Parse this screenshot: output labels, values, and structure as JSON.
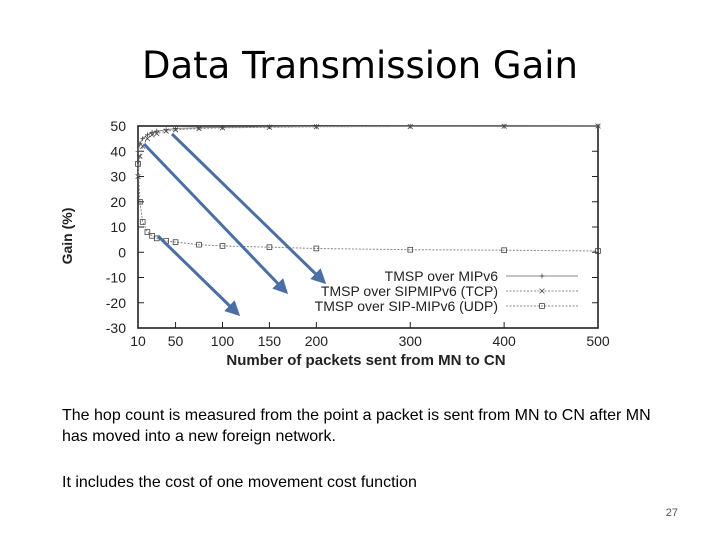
{
  "slide": {
    "title": "Data Transmission Gain",
    "caption_1": "The hop count is measured from the point a packet is sent from MN to CN after MN has moved into a new foreign network.",
    "caption_2": "It includes the cost of one movement cost function",
    "page_number": "27"
  },
  "chart_data": {
    "type": "line",
    "title": "",
    "xlabel": "Number of packets sent from MN to CN",
    "ylabel": "Gain (%)",
    "xlim": [
      10,
      500
    ],
    "ylim": [
      -30,
      50
    ],
    "x_ticks": [
      10,
      50,
      100,
      150,
      200,
      300,
      400,
      500
    ],
    "y_ticks": [
      50,
      40,
      30,
      20,
      10,
      0,
      -10,
      -20,
      -30
    ],
    "grid": false,
    "legend_position": "bottom-right",
    "series": [
      {
        "name": "TMSP over MIPv6",
        "marker": "plus",
        "x": [
          10,
          12,
          15,
          20,
          25,
          30,
          40,
          50,
          75,
          100,
          150,
          200,
          300,
          400,
          500
        ],
        "y": [
          40,
          43,
          45,
          46.5,
          47.5,
          48,
          48.5,
          49,
          49.3,
          49.5,
          49.7,
          49.8,
          49.9,
          49.9,
          50
        ]
      },
      {
        "name": "TMSP over SIPMIPv6 (TCP)",
        "marker": "cross",
        "x": [
          10,
          12,
          15,
          20,
          25,
          30,
          40,
          50,
          75,
          100,
          150,
          200,
          300,
          400,
          500
        ],
        "y": [
          30,
          38,
          42,
          45,
          46.5,
          47,
          48,
          48.5,
          49,
          49.3,
          49.5,
          49.7,
          49.8,
          49.9,
          50
        ]
      },
      {
        "name": "TMSP over SIP-MIPv6 (UDP)",
        "marker": "square",
        "x": [
          10,
          12,
          15,
          20,
          25,
          30,
          40,
          50,
          75,
          100,
          150,
          200,
          300,
          400,
          500
        ],
        "y": [
          35,
          20,
          12,
          8,
          6.5,
          5.5,
          4.5,
          4,
          3,
          2.5,
          2,
          1.5,
          1,
          0.8,
          0.5
        ]
      }
    ]
  },
  "colors": {
    "arrow": "#4a6fa5",
    "arrow_edge": "#2e4f82",
    "axis": "#222222",
    "series_line": "#888888",
    "marker": "#444444"
  }
}
